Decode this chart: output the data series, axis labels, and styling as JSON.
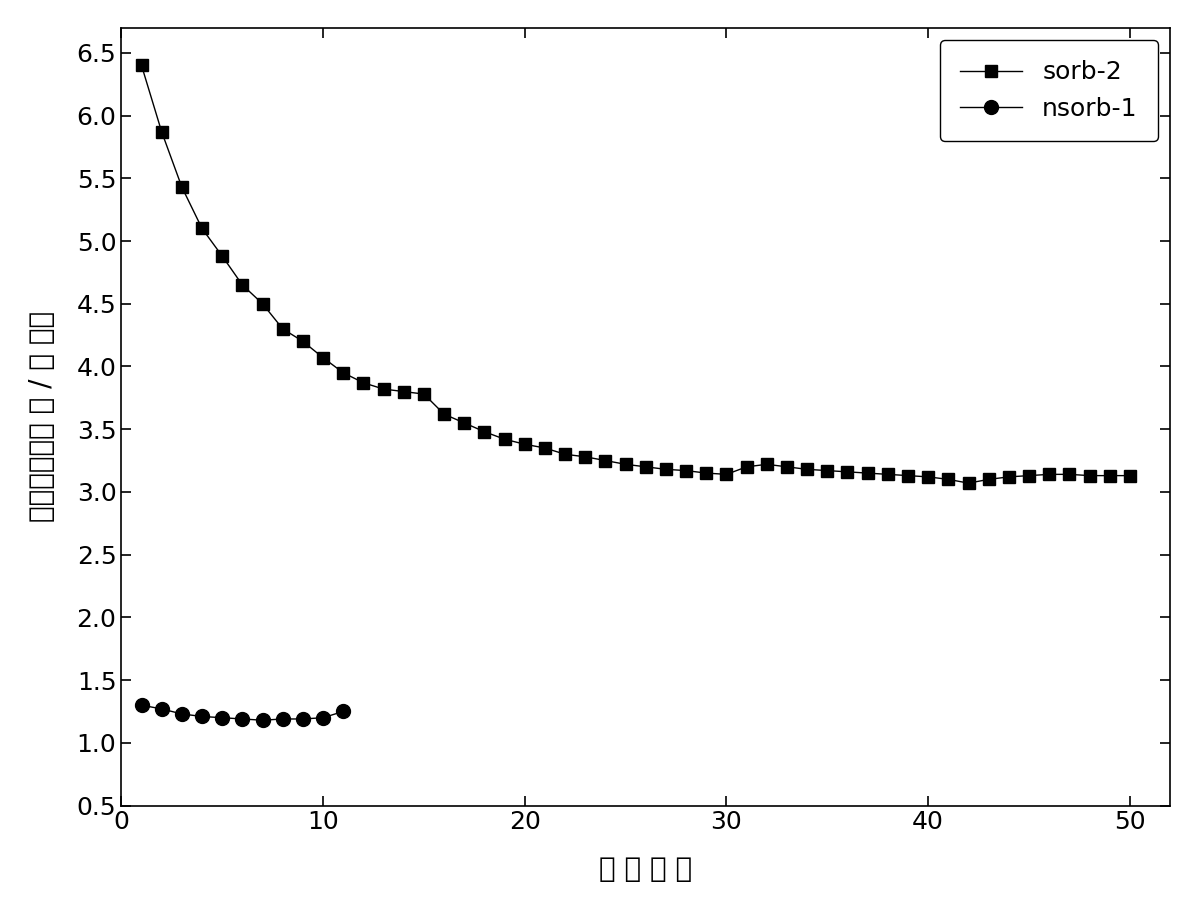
{
  "sorb2_x": [
    1,
    2,
    3,
    4,
    5,
    6,
    7,
    8,
    9,
    10,
    11,
    12,
    13,
    14,
    15,
    16,
    17,
    18,
    19,
    20,
    21,
    22,
    23,
    24,
    25,
    26,
    27,
    28,
    29,
    30,
    31,
    32,
    33,
    34,
    35,
    36,
    37,
    38,
    39,
    40,
    41,
    42,
    43,
    44,
    45,
    46,
    47,
    48,
    49,
    50
  ],
  "sorb2_y": [
    6.4,
    5.87,
    5.43,
    5.1,
    4.88,
    4.65,
    4.5,
    4.3,
    4.2,
    4.07,
    3.95,
    3.87,
    3.82,
    3.8,
    3.78,
    3.62,
    3.55,
    3.48,
    3.42,
    3.38,
    3.35,
    3.3,
    3.28,
    3.25,
    3.22,
    3.2,
    3.18,
    3.17,
    3.15,
    3.14,
    3.2,
    3.22,
    3.2,
    3.18,
    3.17,
    3.16,
    3.15,
    3.14,
    3.13,
    3.12,
    3.1,
    3.07,
    3.1,
    3.12,
    3.13,
    3.14,
    3.14,
    3.13,
    3.13,
    3.13
  ],
  "nsorb1_x": [
    1,
    2,
    3,
    4,
    5,
    6,
    7,
    8,
    9,
    10,
    11
  ],
  "nsorb1_y": [
    1.3,
    1.27,
    1.23,
    1.21,
    1.2,
    1.19,
    1.18,
    1.19,
    1.19,
    1.2,
    1.25
  ],
  "xlabel": "循 环 次 数",
  "ylabel_line1": "吸附容量（摩 尔 / 千 克）",
  "xlim": [
    0,
    52
  ],
  "ylim": [
    0.5,
    6.7
  ],
  "xticks": [
    0,
    10,
    20,
    30,
    40,
    50
  ],
  "yticks": [
    0.5,
    1.0,
    1.5,
    2.0,
    2.5,
    3.0,
    3.5,
    4.0,
    4.5,
    5.0,
    5.5,
    6.0,
    6.5
  ],
  "legend_sorb2": "sorb-2",
  "legend_nsorb1": "nsorb-1",
  "color": "#000000",
  "linewidth": 1.0,
  "marker_size_square": 8,
  "marker_size_circle": 10,
  "font_size_ticks": 18,
  "font_size_label": 20,
  "font_size_legend": 18
}
